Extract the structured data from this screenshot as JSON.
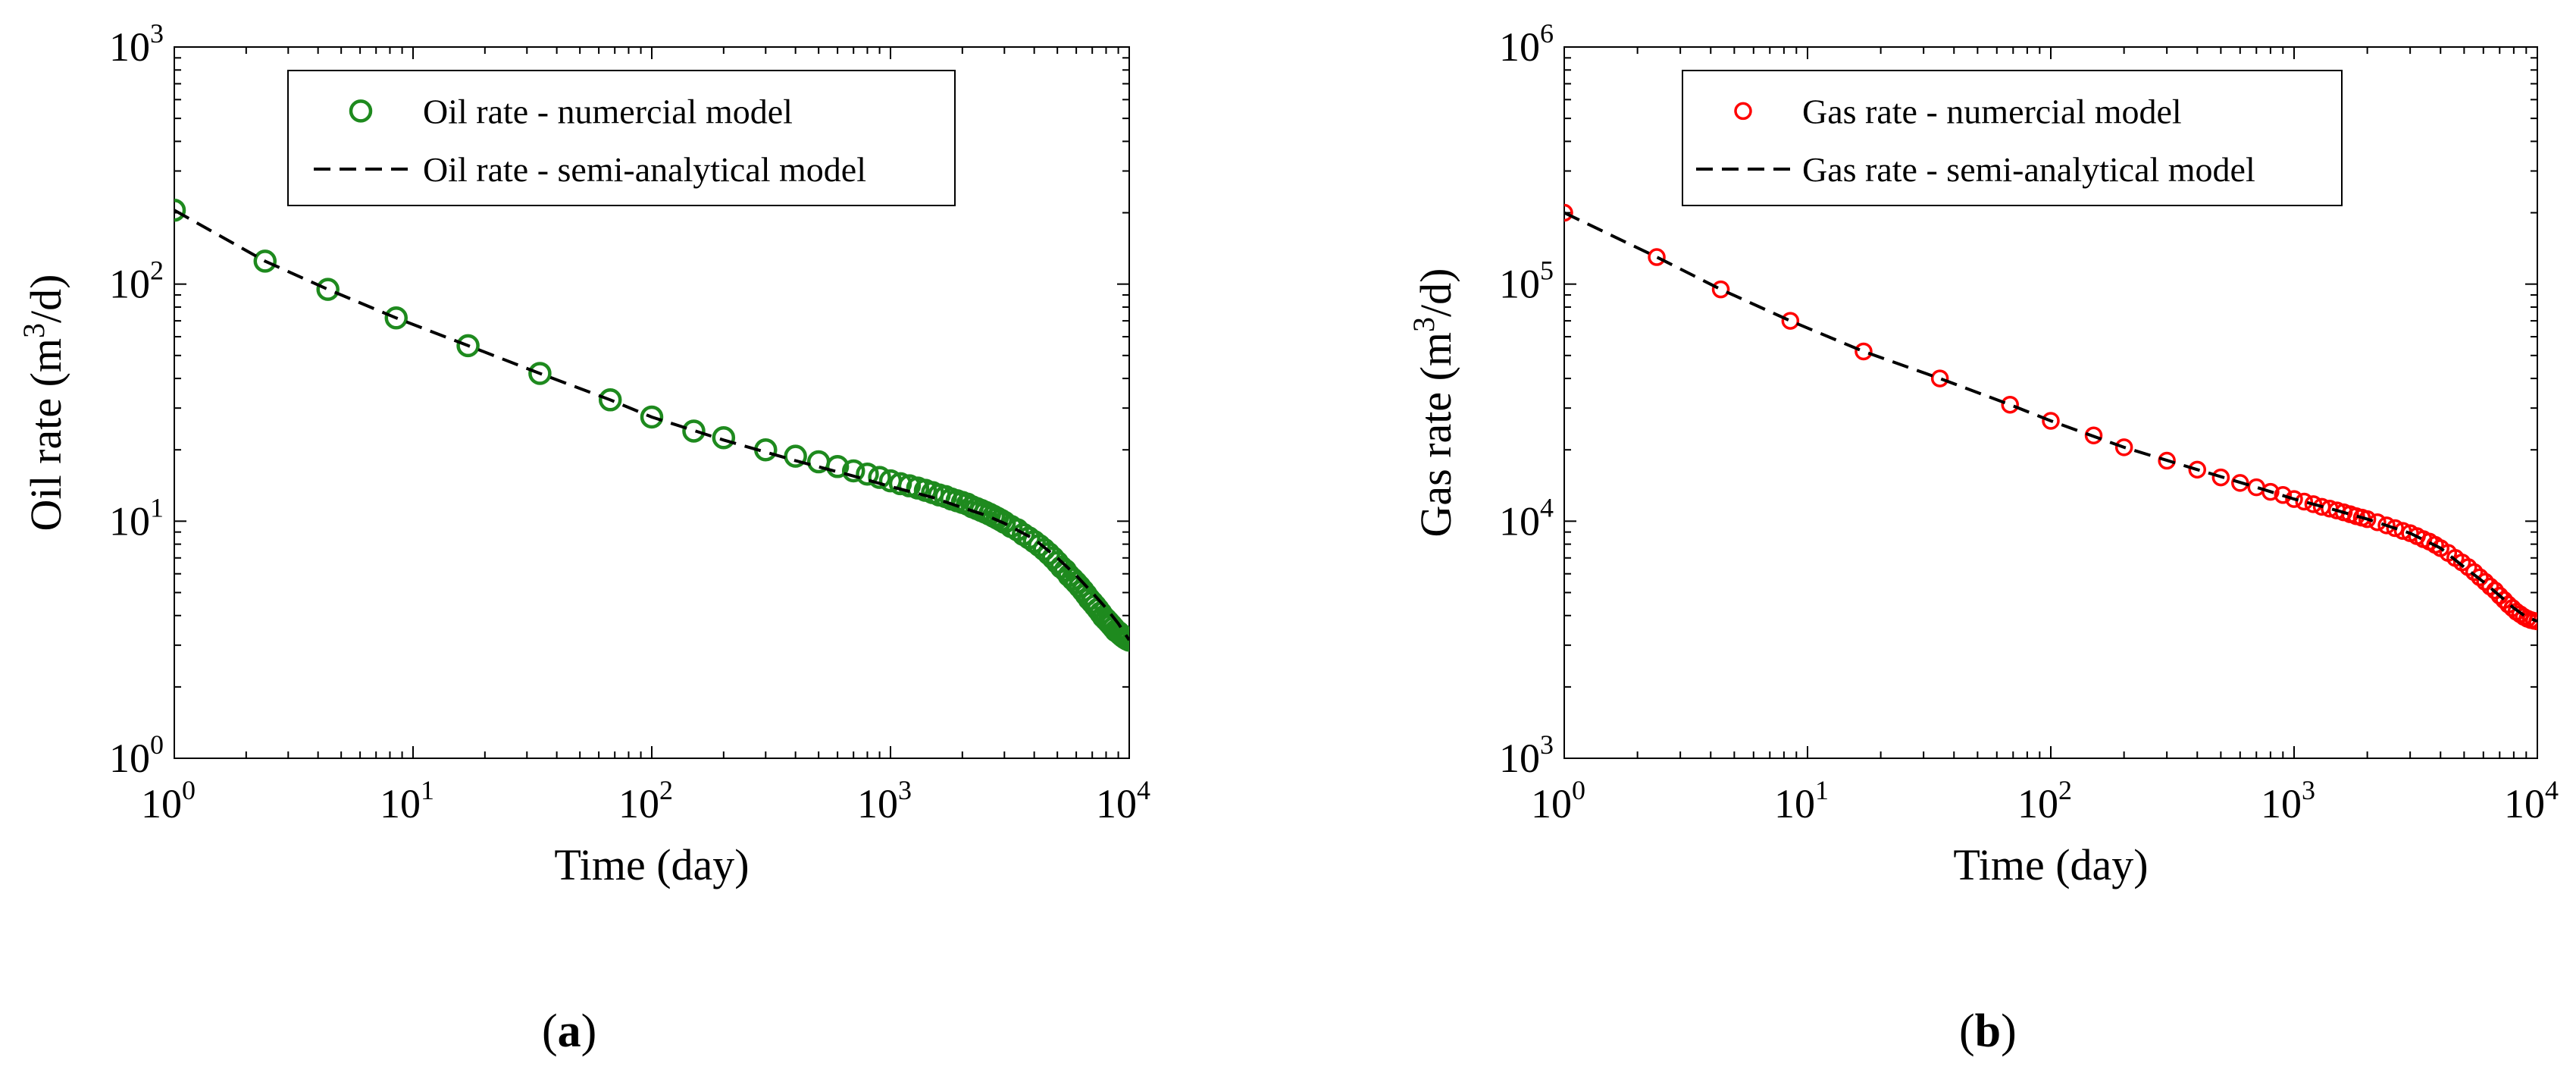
{
  "chart_data": [
    {
      "type": "scatter",
      "panel_label": "a",
      "xlabel": "Time (day)",
      "ylabel": "Oil rate (m3/d)",
      "ylabel_parts": [
        "Oil rate (m",
        "3",
        "/d)"
      ],
      "xscale": "log",
      "yscale": "log",
      "xlim": [
        1,
        10000
      ],
      "ylim": [
        1,
        1000
      ],
      "xtick_exponents": [
        "0",
        "1",
        "2",
        "3",
        "4"
      ],
      "ytick_exponents": [
        "0",
        "1",
        "2",
        "3"
      ],
      "tick_base": "10",
      "legend_position": "top-center",
      "series": [
        {
          "name": "Oil rate - numercial model",
          "style": "markers",
          "color": "#1e8a1e",
          "x": [
            1,
            2.4,
            4.4,
            8.5,
            17,
            34,
            67,
            100,
            150,
            200,
            300,
            400,
            500,
            600,
            700,
            800,
            900,
            1000,
            1100,
            1200,
            1300,
            1400,
            1500,
            1600,
            1700,
            1800,
            1900,
            2000,
            2100,
            2200,
            2300,
            2400,
            2500,
            2600,
            2700,
            2800,
            2900,
            3000,
            3200,
            3400,
            3600,
            3800,
            4000,
            4200,
            4400,
            4600,
            4800,
            5000,
            5200,
            5400,
            5600,
            5800,
            6000,
            6200,
            6400,
            6600,
            6800,
            7000,
            7200,
            7400,
            7600,
            7800,
            8000,
            8200,
            8400,
            8600,
            8800,
            9000,
            9200,
            9400,
            9600,
            9800,
            10000
          ],
          "y": [
            205,
            125,
            95,
            72,
            55,
            42,
            32.5,
            27.5,
            24,
            22.5,
            20,
            18.8,
            17.8,
            17,
            16.3,
            15.8,
            15.3,
            14.8,
            14.4,
            14.1,
            13.8,
            13.5,
            13.2,
            12.9,
            12.7,
            12.4,
            12.2,
            12.0,
            11.8,
            11.5,
            11.3,
            11.1,
            10.9,
            10.7,
            10.5,
            10.3,
            10.1,
            9.9,
            9.5,
            9.2,
            8.8,
            8.5,
            8.2,
            7.9,
            7.6,
            7.3,
            7.0,
            6.7,
            6.4,
            6.2,
            5.9,
            5.7,
            5.5,
            5.3,
            5.1,
            4.9,
            4.7,
            4.55,
            4.4,
            4.25,
            4.1,
            3.95,
            3.85,
            3.75,
            3.65,
            3.55,
            3.45,
            3.4,
            3.33,
            3.27,
            3.22,
            3.18,
            3.15
          ]
        },
        {
          "name": "Oil rate - semi-analytical model",
          "style": "dashed-line",
          "color": "#000000",
          "x": [
            1,
            2.4,
            4.4,
            8.5,
            17,
            34,
            67,
            100,
            200,
            400,
            700,
            1000,
            1500,
            2000,
            2500,
            3000,
            4000,
            5000,
            6000,
            7000,
            8000,
            9000,
            10000
          ],
          "y": [
            205,
            125,
            95,
            72,
            55,
            42,
            32.5,
            27.5,
            22.0,
            18.0,
            15.5,
            14.0,
            12.6,
            11.4,
            10.6,
            9.8,
            8.4,
            7.0,
            5.9,
            5.0,
            4.3,
            3.7,
            3.15
          ]
        }
      ]
    },
    {
      "type": "scatter",
      "panel_label": "b",
      "xlabel": "Time (day)",
      "ylabel": "Gas rate (m3/d)",
      "ylabel_parts": [
        "Gas rate (m",
        "3",
        "/d)"
      ],
      "xscale": "log",
      "yscale": "log",
      "xlim": [
        1,
        10000
      ],
      "ylim": [
        1000,
        1000000
      ],
      "xtick_exponents": [
        "0",
        "1",
        "2",
        "3",
        "4"
      ],
      "ytick_exponents": [
        "3",
        "4",
        "5",
        "6"
      ],
      "tick_base": "10",
      "legend_position": "top-center",
      "series": [
        {
          "name": "Gas rate - numercial model",
          "style": "markers",
          "color": "#ff0000",
          "x": [
            1,
            2.4,
            4.4,
            8.5,
            17,
            35,
            68,
            100,
            150,
            200,
            300,
            400,
            500,
            600,
            700,
            800,
            900,
            1000,
            1100,
            1200,
            1300,
            1400,
            1500,
            1600,
            1700,
            1800,
            1900,
            2000,
            2200,
            2400,
            2600,
            2800,
            3000,
            3200,
            3400,
            3600,
            3800,
            4000,
            4300,
            4600,
            4900,
            5200,
            5500,
            5800,
            6100,
            6400,
            6700,
            7000,
            7300,
            7600,
            7900,
            8200,
            8500,
            8800,
            9100,
            9400,
            9700,
            10000
          ],
          "y": [
            200000,
            130000,
            95000,
            70000,
            52000,
            40000,
            31000,
            26500,
            23000,
            20500,
            18000,
            16500,
            15300,
            14500,
            13900,
            13300,
            12900,
            12400,
            12100,
            11800,
            11500,
            11300,
            11100,
            10900,
            10700,
            10500,
            10350,
            10200,
            9900,
            9600,
            9350,
            9100,
            8900,
            8650,
            8400,
            8200,
            7950,
            7700,
            7350,
            7000,
            6700,
            6400,
            6100,
            5800,
            5550,
            5300,
            5100,
            4850,
            4650,
            4450,
            4300,
            4150,
            4050,
            3950,
            3880,
            3830,
            3800,
            3780
          ]
        },
        {
          "name": "Gas rate - semi-analytical model",
          "style": "dashed-line",
          "color": "#000000",
          "x": [
            1,
            2.4,
            4.4,
            8.5,
            17,
            35,
            68,
            100,
            200,
            400,
            700,
            1000,
            1500,
            2000,
            3000,
            4000,
            5000,
            6000,
            7000,
            8000,
            9000,
            10000
          ],
          "y": [
            200000,
            130000,
            95000,
            70000,
            52000,
            40000,
            31000,
            26500,
            20500,
            16500,
            13900,
            12400,
            11100,
            10200,
            8900,
            7700,
            6400,
            5550,
            4850,
            4300,
            3950,
            3780
          ]
        }
      ]
    }
  ]
}
